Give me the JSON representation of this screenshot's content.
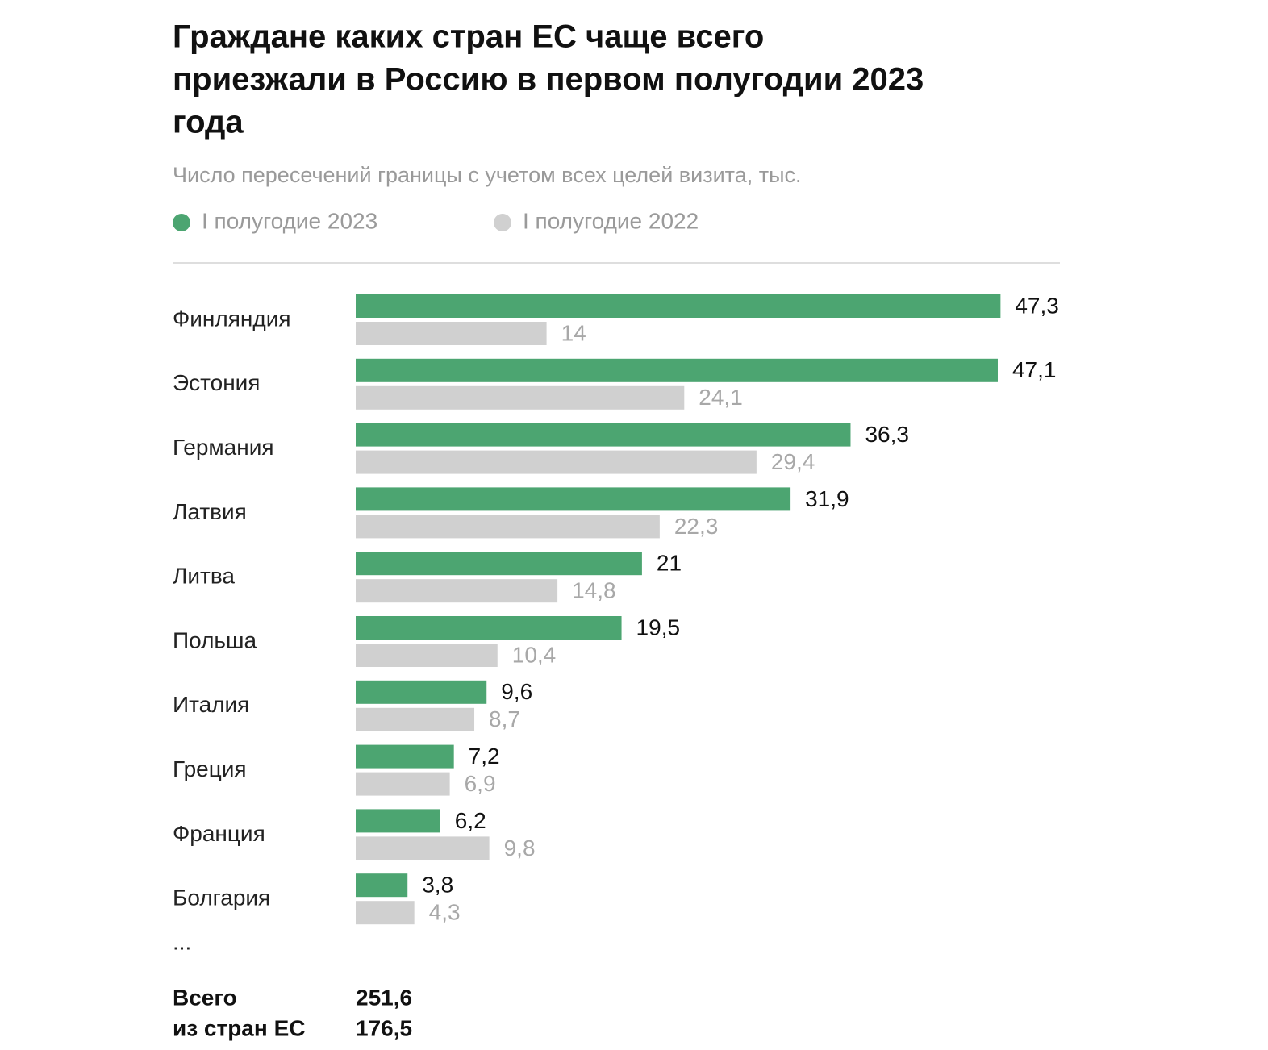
{
  "chart_data": {
    "type": "hbar",
    "title": [
      "Граждане каких стран ЕС чаще всего",
      "приезжали в Россию в первом полугодии 2023",
      "года"
    ],
    "subtitle": "Число пересечений границы с учетом всех целей визита, тыс.",
    "categories": [
      "Финляндия",
      "Эстония",
      "Германия",
      "Латвия",
      "Литва",
      "Польша",
      "Италия",
      "Греция",
      "Франция",
      "Болгария"
    ],
    "series": [
      {
        "name": "I полугодие 2023",
        "color": "#4ca571",
        "label_color": "#111111",
        "values": [
          47.3,
          47.1,
          36.3,
          31.9,
          21,
          19.5,
          9.6,
          7.2,
          6.2,
          3.8
        ],
        "value_labels": [
          "47,3",
          "47,1",
          "36,3",
          "31,9",
          "21",
          "19,5",
          "9,6",
          "7,2",
          "6,2",
          "3,8"
        ],
        "total": 251.6,
        "total_label": "251,6"
      },
      {
        "name": "I полугодие 2022",
        "color": "#d0d0d0",
        "label_color": "#a8a8a8",
        "values": [
          14,
          24.1,
          29.4,
          22.3,
          14.8,
          10.4,
          8.7,
          6.9,
          9.8,
          4.3
        ],
        "value_labels": [
          "14",
          "24,1",
          "29,4",
          "22,3",
          "14,8",
          "10,4",
          "8,7",
          "6,9",
          "9,8",
          "4,3"
        ],
        "total": 176.5,
        "total_label": "176,5"
      }
    ],
    "more": "...",
    "total_name": [
      "Всего",
      "из стран ЕС"
    ],
    "xlim": [
      0,
      50
    ]
  }
}
